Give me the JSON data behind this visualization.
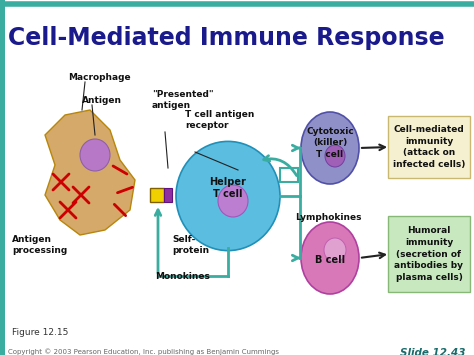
{
  "title": "Cell-Mediated Immune Response",
  "title_color": "#1a1a8c",
  "title_fontsize": 17,
  "bg_color": "#ffffff",
  "top_bar_color": "#3aada0",
  "left_bar_color": "#3aada0",
  "slide_text": "Slide 12.43",
  "slide_color": "#1a6b6b",
  "copyright_text": "Copyright © 2003 Pearson Education, Inc. publishing as Benjamin Cummings",
  "figure_text": "Figure 12.15",
  "macrophage_color": "#d4a96a",
  "helper_tcell_color": "#5bbde0",
  "cytotoxic_color": "#9090c8",
  "bcell_color": "#d878b8",
  "nucleus_helper": "#c878d0",
  "nucleus_cyto": "#a060b8",
  "nucleus_bcell": "#e0a0d0",
  "box1_color": "#f5f0d0",
  "box1_edge": "#c8b870",
  "box1_text": "Cell-mediated\nimmunity\n(attack on\ninfected cells)",
  "box2_color": "#c8e8c0",
  "box2_edge": "#88b878",
  "box2_text": "Humoral\nimmunity\n(secretion of\nantibodies by\nplasma cells)",
  "teal_arrow": "#3aada0",
  "dark_arrow": "#222222",
  "lfs": 6.5
}
